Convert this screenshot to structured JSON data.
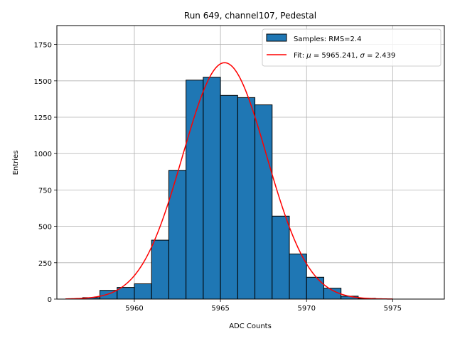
{
  "chart_data": {
    "type": "bar",
    "title": "Run 649, channel107, Pedestal",
    "xlabel": "ADC Counts",
    "ylabel": "Entries",
    "xlim": [
      5955.5,
      5978
    ],
    "ylim": [
      0,
      1880
    ],
    "xticks": [
      5960,
      5965,
      5970,
      5975
    ],
    "yticks": [
      0,
      250,
      500,
      750,
      1000,
      1250,
      1500,
      1750
    ],
    "grid": true,
    "legend_position": "top-right",
    "bin_width": 1,
    "bins": [
      {
        "left": 5957,
        "value": 10
      },
      {
        "left": 5958,
        "value": 60
      },
      {
        "left": 5959,
        "value": 80
      },
      {
        "left": 5960,
        "value": 105
      },
      {
        "left": 5961,
        "value": 405
      },
      {
        "left": 5962,
        "value": 885
      },
      {
        "left": 5963,
        "value": 1505
      },
      {
        "left": 5964,
        "value": 1525
      },
      {
        "left": 5965,
        "value": 1400
      },
      {
        "left": 5966,
        "value": 1385
      },
      {
        "left": 5967,
        "value": 1335
      },
      {
        "left": 5968,
        "value": 570
      },
      {
        "left": 5969,
        "value": 310
      },
      {
        "left": 5970,
        "value": 150
      },
      {
        "left": 5971,
        "value": 75
      },
      {
        "left": 5972,
        "value": 20
      },
      {
        "left": 5973,
        "value": 5
      }
    ],
    "fit": {
      "mu": 5965.241,
      "sigma": 2.439,
      "peak": 1625,
      "x_range": [
        5956,
        5975
      ]
    },
    "series": [
      {
        "name": "Samples: RMS=2.4",
        "kind": "histogram",
        "color": "#1f77b4",
        "edge": "#000000"
      },
      {
        "name_prefix": "Fit: ",
        "name_mu": "μ",
        "name_mid": " = 5965.241, ",
        "name_sigma": "σ",
        "name_tail": " = 2.439",
        "kind": "line",
        "color": "#ff0000"
      }
    ]
  }
}
